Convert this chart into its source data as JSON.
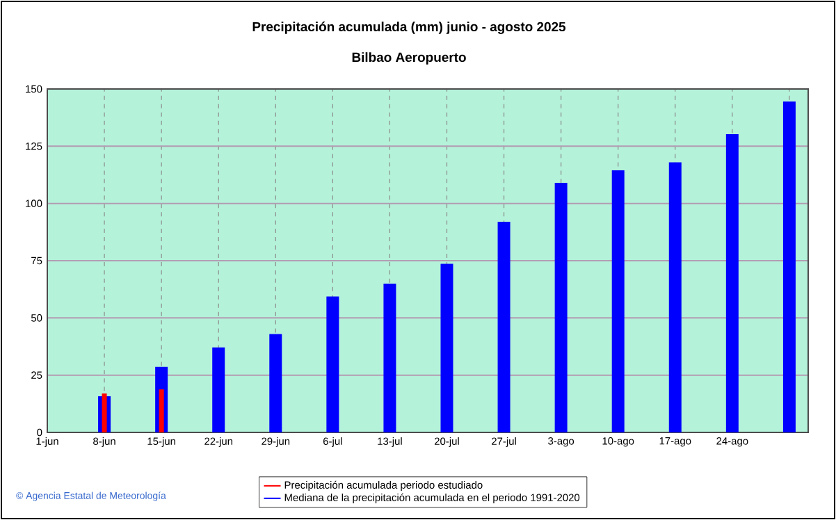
{
  "chart_data": {
    "type": "bar",
    "title": "Precipitación acumulada (mm) junio - agosto 2025",
    "subtitle": "Bilbao Aeropuerto",
    "categories": [
      "1-jun",
      "8-jun",
      "15-jun",
      "22-jun",
      "29-jun",
      "6-jul",
      "13-jul",
      "20-jul",
      "27-jul",
      "3-ago",
      "10-ago",
      "17-ago",
      "24-ago",
      null
    ],
    "series": [
      {
        "name": "Mediana de la precipitación acumulada en el periodo 1991-2020",
        "color": "#0000ff",
        "values": [
          null,
          15.8,
          28.6,
          37.1,
          43,
          59.4,
          65,
          73.6,
          92,
          109,
          114.5,
          118,
          130.3,
          144.5
        ]
      },
      {
        "name": "Precipitación acumulada periodo estudiado",
        "color": "#ff0000",
        "values": [
          null,
          17,
          18.8,
          null,
          null,
          null,
          null,
          null,
          null,
          null,
          null,
          null,
          null,
          null
        ]
      }
    ],
    "ylim": [
      0,
      150
    ],
    "yticks": [
      0,
      25,
      50,
      75,
      100,
      125,
      150
    ],
    "grid": true,
    "legend": "bottom",
    "annotations": [
      "© Agencia Estatal de Meteorología"
    ]
  }
}
